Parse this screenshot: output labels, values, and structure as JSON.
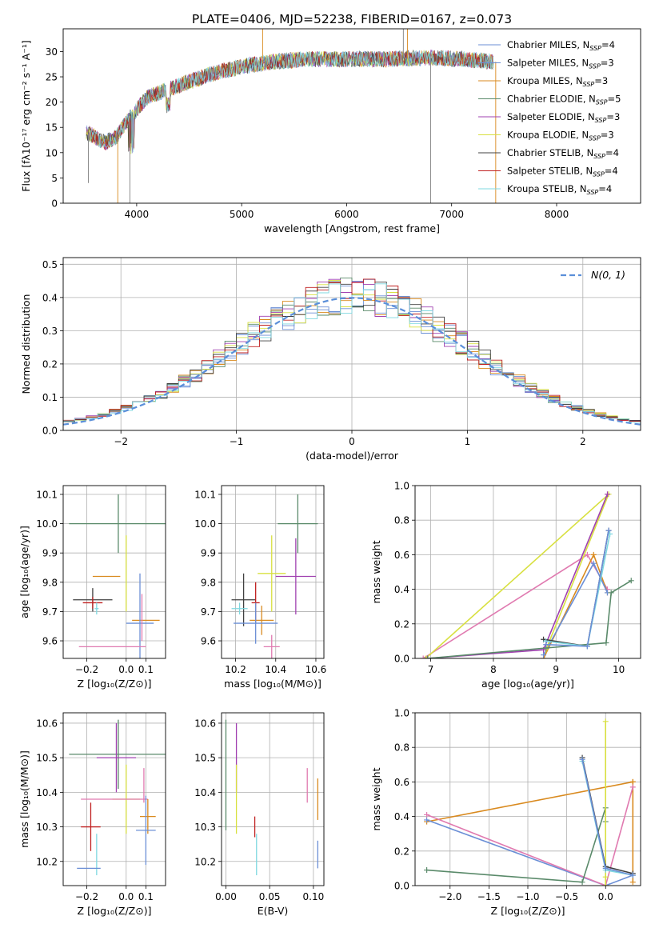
{
  "title": "PLATE=0406, MJD=52238, FIBERID=0167, z=0.073",
  "series_colors": {
    "Chabrier MILES": "#6b8fd6",
    "Salpeter MILES": "#6b8fd6",
    "Kroupa MILES": "#d98a1f",
    "Chabrier ELODIE": "#5a8a6a",
    "Salpeter ELODIE": "#a040b0",
    "Kroupa ELODIE": "#d8e040",
    "Chabrier STELIB": "#404040",
    "Salpeter STELIB": "#c02020",
    "Kroupa STELIB": "#7fd8e0"
  },
  "chart_data": [
    {
      "id": "spectrum",
      "type": "line",
      "title": "PLATE=0406, MJD=52238, FIBERID=0167, z=0.073",
      "xlabel": "wavelength [Angstrom, rest frame]",
      "ylabel": "Flux [fλ10⁻¹⁷ erg cm⁻² s⁻¹ A⁻¹]",
      "xlim": [
        3300,
        8800
      ],
      "ylim": [
        0,
        34.5
      ],
      "xticks": [
        4000,
        5000,
        6000,
        7000,
        8000
      ],
      "yticks": [
        0,
        5,
        10,
        15,
        20,
        25,
        30
      ],
      "legend": "top-right",
      "legend_entries": [
        {
          "text": "Chabrier MILES, N",
          "sub": "SSP",
          "tail": "=4",
          "color": "#6b8fd6"
        },
        {
          "text": "Salpeter MILES, N",
          "sub": "SSP",
          "tail": "=3",
          "color": "#6b8fd6"
        },
        {
          "text": "Kroupa MILES, N",
          "sub": "SSP",
          "tail": "=3",
          "color": "#d98a1f"
        },
        {
          "text": "Chabrier ELODIE, N",
          "sub": "SSP",
          "tail": "=5",
          "color": "#5a8a6a"
        },
        {
          "text": "Salpeter ELODIE, N",
          "sub": "SSP",
          "tail": "=3",
          "color": "#a040b0"
        },
        {
          "text": "Kroupa ELODIE, N",
          "sub": "SSP",
          "tail": "=3",
          "color": "#d8e040"
        },
        {
          "text": "Chabrier STELIB, N",
          "sub": "SSP",
          "tail": "=4",
          "color": "#404040"
        },
        {
          "text": "Salpeter STELIB, N",
          "sub": "SSP",
          "tail": "=4",
          "color": "#c02020"
        },
        {
          "text": "Kroupa STELIB, N",
          "sub": "SSP",
          "tail": "=4",
          "color": "#7fd8e0"
        }
      ],
      "continuum": {
        "x": [
          3520,
          3700,
          3800,
          3900,
          4000,
          4100,
          4300,
          4500,
          4700,
          5000,
          5300,
          5600,
          6000,
          6400,
          6800,
          7100,
          7400
        ],
        "y": [
          14,
          12,
          13,
          16,
          18.5,
          21,
          22.5,
          24,
          25.5,
          27,
          28,
          28.5,
          28.5,
          28.5,
          28.8,
          28.5,
          28
        ]
      },
      "spikes": [
        {
          "x": 3540,
          "y": 4
        },
        {
          "x": 3820,
          "y": 0
        },
        {
          "x": 3935,
          "y": 0
        },
        {
          "x": 5200,
          "y": 34.5
        },
        {
          "x": 6540,
          "y": 34.5
        },
        {
          "x": 6580,
          "y": 34.5
        },
        {
          "x": 6800,
          "y": 0
        },
        {
          "x": 7420,
          "y": 0
        }
      ]
    },
    {
      "id": "residuals",
      "type": "histogram",
      "xlabel": "(data-model)/error",
      "ylabel": "Normed distribution",
      "xlim": [
        -2.5,
        2.5
      ],
      "ylim": [
        0,
        0.52
      ],
      "xticks": [
        -2,
        -1,
        0,
        1,
        2
      ],
      "yticks": [
        0.0,
        0.1,
        0.2,
        0.3,
        0.4,
        0.5
      ],
      "legend": "top-right",
      "legend_label": "N(0, 1)",
      "gaussian": {
        "mean": 0,
        "sigma": 1
      }
    },
    {
      "id": "age_vs_Z",
      "type": "errorbar",
      "xlabel": "Z [log₁₀(Z/Z⊙)]",
      "ylabel": "age  [log₁₀(age/yr)]",
      "xlim": [
        -0.32,
        0.2
      ],
      "ylim": [
        9.54,
        10.13
      ],
      "xticks": [
        -0.2,
        0.0,
        0.1
      ],
      "yticks": [
        9.6,
        9.7,
        9.8,
        9.9,
        10.0,
        10.1
      ],
      "points": [
        {
          "x": -0.04,
          "xerr": 0.25,
          "y": 10.0,
          "yerr": 0.1,
          "color": "#5a8a6a"
        },
        {
          "x": 0.0,
          "xerr": 0.0,
          "y": 9.83,
          "yerr": 0.13,
          "color": "#d8e040"
        },
        {
          "x": -0.1,
          "xerr": 0.07,
          "y": 9.82,
          "yerr": 0.0,
          "color": "#d98a1f"
        },
        {
          "x": -0.17,
          "xerr": 0.1,
          "y": 9.74,
          "yerr": 0.04,
          "color": "#404040"
        },
        {
          "x": -0.17,
          "xerr": 0.05,
          "y": 9.73,
          "yerr": 0.02,
          "color": "#c02020"
        },
        {
          "x": -0.15,
          "xerr": 0.01,
          "y": 9.71,
          "yerr": 0.02,
          "color": "#7fd8e0"
        },
        {
          "x": 0.1,
          "xerr": 0.07,
          "y": 9.67,
          "yerr": 0.0,
          "color": "#d98a1f"
        },
        {
          "x": 0.07,
          "xerr": 0.07,
          "y": 9.66,
          "yerr": 0.17,
          "color": "#6b8fd6"
        },
        {
          "x": -0.07,
          "xerr": 0.17,
          "y": 9.58,
          "yerr": 0.0,
          "color": "#e07ab0"
        },
        {
          "x": 0.08,
          "xerr": 0.0,
          "y": 9.68,
          "yerr": 0.08,
          "color": "#e07ab0"
        }
      ]
    },
    {
      "id": "age_vs_mass",
      "type": "errorbar",
      "xlabel": "mass [log₁₀(M/M⊙)]",
      "ylabel": "",
      "xlim": [
        10.13,
        10.64
      ],
      "ylim": [
        9.54,
        10.13
      ],
      "xticks": [
        10.2,
        10.4,
        10.6
      ],
      "yticks": [
        9.6,
        9.7,
        9.8,
        9.9,
        10.0,
        10.1
      ],
      "points": [
        {
          "x": 10.51,
          "xerr": 0.1,
          "y": 10.0,
          "yerr": 0.1,
          "color": "#5a8a6a"
        },
        {
          "x": 10.5,
          "xerr": 0.1,
          "y": 9.82,
          "yerr": 0.13,
          "color": "#a040b0"
        },
        {
          "x": 10.38,
          "xerr": 0.07,
          "y": 9.83,
          "yerr": 0.13,
          "color": "#d8e040"
        },
        {
          "x": 10.24,
          "xerr": 0.06,
          "y": 9.74,
          "yerr": 0.09,
          "color": "#404040"
        },
        {
          "x": 10.3,
          "xerr": 0.02,
          "y": 9.73,
          "yerr": 0.07,
          "color": "#c02020"
        },
        {
          "x": 10.22,
          "xerr": 0.04,
          "y": 9.71,
          "yerr": 0.02,
          "color": "#7fd8e0"
        },
        {
          "x": 10.33,
          "xerr": 0.06,
          "y": 9.67,
          "yerr": 0.05,
          "color": "#d98a1f"
        },
        {
          "x": 10.3,
          "xerr": 0.11,
          "y": 9.66,
          "yerr": 0.07,
          "color": "#6b8fd6"
        },
        {
          "x": 10.38,
          "xerr": 0.04,
          "y": 9.58,
          "yerr": 0.04,
          "color": "#e07ab0"
        }
      ]
    },
    {
      "id": "weight_vs_age",
      "type": "line",
      "xlabel": "age  [log₁₀(age/yr)]",
      "ylabel": "mass weight",
      "xlim": [
        6.75,
        10.35
      ],
      "ylim": [
        0,
        1.0
      ],
      "xticks": [
        7,
        8,
        9,
        10
      ],
      "yticks": [
        0.0,
        0.2,
        0.4,
        0.6,
        0.8,
        1.0
      ],
      "series": [
        {
          "color": "#e07ab0",
          "x": [
            6.88,
            9.5,
            9.82
          ],
          "y": [
            0.0,
            0.6,
            0.4
          ]
        },
        {
          "color": "#d98a1f",
          "x": [
            8.8,
            9.6,
            9.82
          ],
          "y": [
            0.0,
            0.6,
            0.38
          ]
        },
        {
          "color": "#6b8fd6",
          "x": [
            8.8,
            9.6,
            9.82
          ],
          "y": [
            0.02,
            0.55,
            0.38
          ]
        },
        {
          "color": "#d8e040",
          "x": [
            6.92,
            9.84,
            8.84
          ],
          "y": [
            0.0,
            0.95,
            0.05
          ]
        },
        {
          "color": "#a040b0",
          "x": [
            6.95,
            8.8,
            9.82
          ],
          "y": [
            0.0,
            0.05,
            0.95
          ]
        },
        {
          "color": "#5a8a6a",
          "x": [
            6.95,
            8.84,
            9.8,
            9.88,
            10.2
          ],
          "y": [
            0.0,
            0.06,
            0.09,
            0.38,
            0.45
          ]
        },
        {
          "color": "#404040",
          "x": [
            8.8,
            9.5,
            9.84
          ],
          "y": [
            0.11,
            0.07,
            0.74
          ]
        },
        {
          "color": "#7fd8e0",
          "x": [
            8.84,
            9.5,
            9.86
          ],
          "y": [
            0.1,
            0.07,
            0.72
          ]
        },
        {
          "color": "#6b8fd6",
          "x": [
            8.84,
            9.5,
            9.84
          ],
          "y": [
            0.08,
            0.07,
            0.74
          ]
        }
      ]
    },
    {
      "id": "mass_vs_Z",
      "type": "errorbar",
      "xlabel": "Z [log₁₀(Z/Z⊙)]",
      "ylabel": "mass [log₁₀(M/M⊙)]",
      "xlim": [
        -0.32,
        0.2
      ],
      "ylim": [
        10.13,
        10.63
      ],
      "xticks": [
        -0.2,
        0.0,
        0.1
      ],
      "yticks": [
        10.2,
        10.3,
        10.4,
        10.5,
        10.6
      ],
      "points": [
        {
          "x": -0.04,
          "xerr": 0.25,
          "y": 10.51,
          "yerr": 0.1,
          "color": "#5a8a6a"
        },
        {
          "x": -0.05,
          "xerr": 0.1,
          "y": 10.5,
          "yerr": 0.1,
          "color": "#a040b0"
        },
        {
          "x": 0.0,
          "xerr": 0.07,
          "y": 10.38,
          "yerr": 0.1,
          "color": "#d8e040"
        },
        {
          "x": -0.06,
          "xerr": 0.17,
          "y": 10.38,
          "yerr": 0.0,
          "color": "#e07ab0"
        },
        {
          "x": 0.09,
          "xerr": 0.0,
          "y": 10.42,
          "yerr": 0.05,
          "color": "#e07ab0"
        },
        {
          "x": 0.11,
          "xerr": 0.04,
          "y": 10.33,
          "yerr": 0.05,
          "color": "#d98a1f"
        },
        {
          "x": 0.1,
          "xerr": 0.05,
          "y": 10.29,
          "yerr": 0.1,
          "color": "#6b8fd6"
        },
        {
          "x": -0.18,
          "xerr": 0.05,
          "y": 10.3,
          "yerr": 0.07,
          "color": "#c02020"
        },
        {
          "x": -0.15,
          "xerr": 0.0,
          "y": 10.22,
          "yerr": 0.06,
          "color": "#7fd8e0"
        },
        {
          "x": -0.19,
          "xerr": 0.06,
          "y": 10.18,
          "yerr": 0.0,
          "color": "#6b8fd6"
        }
      ]
    },
    {
      "id": "mass_vs_ebv",
      "type": "errorbar",
      "xlabel": "E(B-V)",
      "ylabel": "",
      "xlim": [
        -0.005,
        0.112
      ],
      "ylim": [
        10.13,
        10.63
      ],
      "xticks": [
        0.0,
        0.05,
        0.1
      ],
      "yticks": [
        10.2,
        10.3,
        10.4,
        10.5,
        10.6
      ],
      "points": [
        {
          "x": 0.0,
          "xerr": 0.0,
          "y": 10.45,
          "yerr": 0.16,
          "color": "#5a8a6a"
        },
        {
          "x": 0.012,
          "xerr": 0.0,
          "y": 10.5,
          "yerr": 0.1,
          "color": "#a040b0"
        },
        {
          "x": 0.012,
          "xerr": 0.0,
          "y": 10.38,
          "yerr": 0.1,
          "color": "#d8e040"
        },
        {
          "x": 0.033,
          "xerr": 0.0,
          "y": 10.3,
          "yerr": 0.03,
          "color": "#c02020"
        },
        {
          "x": 0.035,
          "xerr": 0.0,
          "y": 10.22,
          "yerr": 0.06,
          "color": "#7fd8e0"
        },
        {
          "x": 0.093,
          "xerr": 0.0,
          "y": 10.42,
          "yerr": 0.05,
          "color": "#e07ab0"
        },
        {
          "x": 0.105,
          "xerr": 0.0,
          "y": 10.38,
          "yerr": 0.06,
          "color": "#d98a1f"
        },
        {
          "x": 0.105,
          "xerr": 0.0,
          "y": 10.22,
          "yerr": 0.04,
          "color": "#6b8fd6"
        }
      ]
    },
    {
      "id": "weight_vs_Z",
      "type": "line",
      "xlabel": "Z [log₁₀(Z/Z⊙)]",
      "ylabel": "mass weight",
      "xlim": [
        -2.45,
        0.45
      ],
      "ylim": [
        0,
        1.0
      ],
      "xticks": [
        -2.0,
        -1.5,
        -1.0,
        -0.5,
        0.0
      ],
      "yticks": [
        0.0,
        0.2,
        0.4,
        0.6,
        0.8,
        1.0
      ],
      "series": [
        {
          "color": "#d98a1f",
          "x": [
            -2.3,
            0.35,
            0.35,
            0.35
          ],
          "y": [
            0.37,
            0.6,
            0.6,
            0.02
          ]
        },
        {
          "color": "#6b8fd6",
          "x": [
            -2.3,
            0.0,
            0.35
          ],
          "y": [
            0.38,
            0.0,
            0.06
          ]
        },
        {
          "color": "#e07ab0",
          "x": [
            -2.3,
            0.0,
            0.35
          ],
          "y": [
            0.41,
            0.0,
            0.57
          ]
        },
        {
          "color": "#5a8a6a",
          "x": [
            -2.3,
            -0.3,
            0.0,
            0.0
          ],
          "y": [
            0.09,
            0.02,
            0.45,
            0.37
          ]
        },
        {
          "color": "#d8e040",
          "x": [
            0.0,
            0.0,
            0.0
          ],
          "y": [
            0.95,
            0.0,
            0.05
          ]
        },
        {
          "color": "#404040",
          "x": [
            -0.3,
            0.0,
            0.35
          ],
          "y": [
            0.74,
            0.11,
            0.07
          ]
        },
        {
          "color": "#7fd8e0",
          "x": [
            -0.3,
            0.0,
            0.35
          ],
          "y": [
            0.72,
            0.09,
            0.06
          ]
        },
        {
          "color": "#6b8fd6",
          "x": [
            -0.3,
            0.0,
            0.35
          ],
          "y": [
            0.73,
            0.1,
            0.06
          ]
        }
      ]
    }
  ]
}
